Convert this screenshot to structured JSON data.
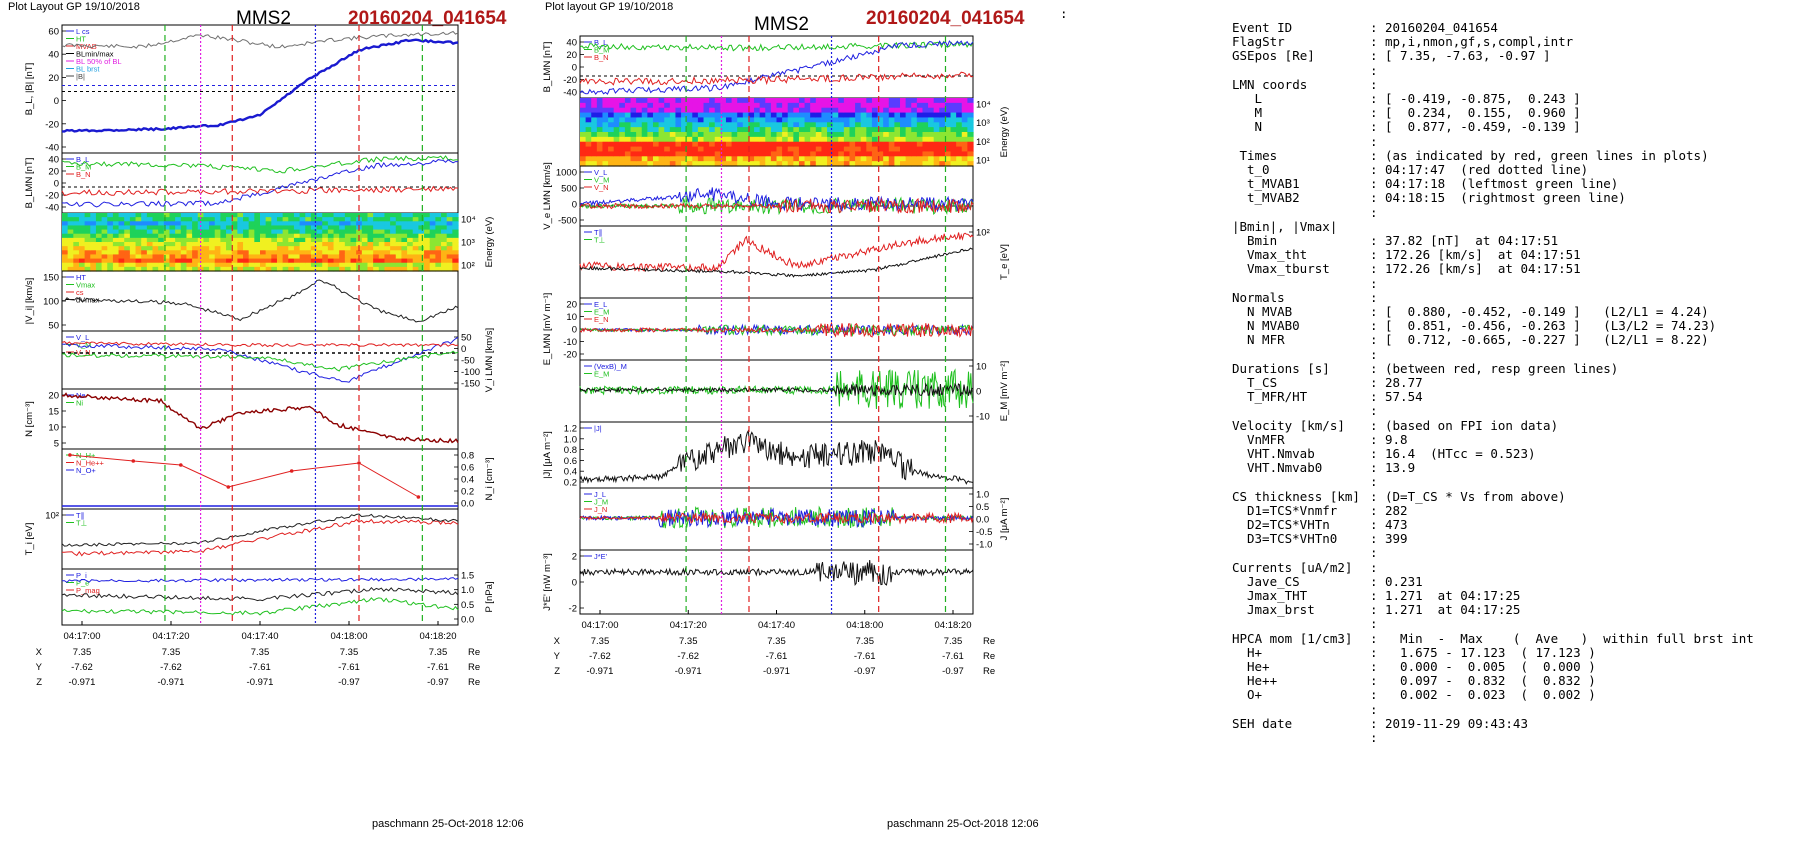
{
  "left_plot": {
    "header": "Plot Layout GP 19/10/2018",
    "spacecraft": "MMS2",
    "event": "20160204_041654",
    "footer": "paschmann 25-Oct-2018 12:06",
    "time_ticks": [
      "04:17:00",
      "04:17:20",
      "04:17:40",
      "04:18:00",
      "04:18:20"
    ],
    "orbit_rows": [
      {
        "label": "X",
        "values": [
          "7.35",
          "7.35",
          "7.35",
          "7.35",
          "7.35"
        ],
        "unit": "Re"
      },
      {
        "label": "Y",
        "values": [
          "-7.62",
          "-7.62",
          "-7.61",
          "-7.61",
          "-7.61"
        ],
        "unit": "Re"
      },
      {
        "label": "Z",
        "values": [
          "-0.971",
          "-0.971",
          "-0.971",
          "-0.97",
          "-0.97"
        ],
        "unit": "Re"
      }
    ],
    "panels": [
      {
        "ylabel": "B_L, |B| [nT]",
        "ticks": [
          "60",
          "40",
          "20",
          "0",
          "-20",
          "-40"
        ],
        "legend": [
          "L cs",
          "HT",
          "MVAB",
          "BLmin/max",
          "BL 50% of BL",
          "BL brst",
          "|B|"
        ]
      },
      {
        "ylabel": "B_LMN [nT]",
        "ticks": [
          "40",
          "20",
          "0",
          "-20",
          "-40"
        ],
        "legend": [
          "B_L",
          "B_M",
          "B_N"
        ]
      },
      {
        "ylabel": "Energy (eV)",
        "ticks": [
          "10⁴",
          "10³",
          "10²"
        ],
        "legend": []
      },
      {
        "ylabel": "|V_i| [km/s]",
        "ticks": [
          "150",
          "100",
          "50"
        ],
        "legend": [
          "HT",
          "Vmax",
          "cs",
          "dVmax"
        ]
      },
      {
        "ylabel": "V_i LMN [km/s]",
        "ticks": [
          "50",
          "0",
          "-50",
          "-100",
          "-150"
        ],
        "legend": [
          "V_L",
          "V_M",
          "V_N"
        ]
      },
      {
        "ylabel": "N [cm⁻³]",
        "ticks": [
          "20",
          "15",
          "10",
          "5"
        ],
        "legend": [
          "Ne",
          "Ni"
        ]
      },
      {
        "ylabel": "N_i [cm⁻³]",
        "ticks": [
          "0.8",
          "0.6",
          "0.4",
          "0.2",
          "0.0"
        ],
        "legend": [
          "N_H+",
          "N_He++",
          "N_O+"
        ]
      },
      {
        "ylabel": "T_i [eV]",
        "ticks": [
          "10²"
        ],
        "legend": [
          "T∥",
          "T⊥"
        ]
      },
      {
        "ylabel": "P [nPa]",
        "ticks": [
          "1.5",
          "1.0",
          "0.5",
          "0.0"
        ],
        "legend": [
          "P_i",
          "P_e",
          "P_mag"
        ]
      }
    ]
  },
  "right_plot": {
    "header": "Plot layout GP 19/10/2018",
    "spacecraft": "MMS2",
    "event": "20160204_041654",
    "footer": "paschmann 25-Oct-2018 12:06",
    "time_ticks": [
      "04:17:00",
      "04:17:20",
      "04:17:40",
      "04:18:00",
      "04:18:20"
    ],
    "orbit_rows": [
      {
        "label": "X",
        "values": [
          "7.35",
          "7.35",
          "7.35",
          "7.35",
          "7.35"
        ],
        "unit": "Re"
      },
      {
        "label": "Y",
        "values": [
          "-7.62",
          "-7.62",
          "-7.61",
          "-7.61",
          "-7.61"
        ],
        "unit": "Re"
      },
      {
        "label": "Z",
        "values": [
          "-0.971",
          "-0.971",
          "-0.971",
          "-0.97",
          "-0.97"
        ],
        "unit": "Re"
      }
    ],
    "panels": [
      {
        "ylabel": "B_LMN [nT]",
        "ticks": [
          "40",
          "20",
          "0",
          "-20",
          "-40"
        ],
        "legend": [
          "B_L",
          "B_M",
          "B_N"
        ]
      },
      {
        "ylabel": "Energy (eV)",
        "ticks": [
          "10⁴",
          "10³",
          "10²",
          "10¹"
        ],
        "legend": []
      },
      {
        "ylabel": "V_e LMN [km/s]",
        "ticks": [
          "1000",
          "500",
          "0",
          "-500"
        ],
        "legend": [
          "V_L",
          "V_M",
          "V_N"
        ]
      },
      {
        "ylabel": "T_e [eV]",
        "ticks": [
          "10²"
        ],
        "legend": [
          "T∥",
          "T⊥"
        ]
      },
      {
        "ylabel": "E_LMN [mV m⁻¹]",
        "ticks": [
          "20",
          "10",
          "0",
          "-10",
          "-20"
        ],
        "legend": [
          "E_L",
          "E_M",
          "E_N"
        ]
      },
      {
        "ylabel": "E_M [mV m⁻²]",
        "ticks": [
          "10",
          "0",
          "-10"
        ],
        "legend": [
          "(VexB)_M",
          "E_M"
        ]
      },
      {
        "ylabel": "|J| [μA m⁻²]",
        "ticks": [
          "1.2",
          "1.0",
          "0.8",
          "0.6",
          "0.4",
          "0.2"
        ],
        "legend": [
          "|J|"
        ]
      },
      {
        "ylabel": "J [μA m⁻²]",
        "ticks": [
          "1.0",
          "0.5",
          "0.0",
          "-0.5",
          "-1.0"
        ],
        "legend": [
          "J_L",
          "J_M",
          "J_N"
        ]
      },
      {
        "ylabel": "J*E' [nW m⁻³]",
        "ticks": [
          "2",
          "0",
          "-2"
        ],
        "legend": [
          "J*E'"
        ]
      }
    ]
  },
  "info_rows": [
    {
      "k": "Event ID",
      "v": "20160204_041654",
      "indent": 0
    },
    {
      "k": "FlagStr",
      "v": "mp,i,nmon,gf,s,compl,intr",
      "indent": 0
    },
    {
      "k": "GSEpos [Re]",
      "v": "[ 7.35, -7.63, -0.97 ]",
      "indent": 0
    },
    {
      "k": "",
      "v": "",
      "indent": 0
    },
    {
      "k": "LMN coords",
      "v": "",
      "indent": 0
    },
    {
      "k": "L",
      "v": "[ -0.419, -0.875,  0.243 ]",
      "indent": 3
    },
    {
      "k": "M",
      "v": "[  0.234,  0.155,  0.960 ]",
      "indent": 3
    },
    {
      "k": "N",
      "v": "[  0.877, -0.459, -0.139 ]",
      "indent": 3
    },
    {
      "k": "",
      "v": "",
      "indent": 0
    },
    {
      "k": " Times",
      "v": "(as indicated by red, green lines in plots)",
      "indent": 0
    },
    {
      "k": "t_0",
      "v": "04:17:47  (red dotted line)",
      "indent": 2
    },
    {
      "k": "t_MVAB1",
      "v": "04:17:18  (leftmost green line)",
      "indent": 2
    },
    {
      "k": "t_MVAB2",
      "v": "04:18:15  (rightmost green line)",
      "indent": 2
    },
    {
      "k": "",
      "v": "",
      "indent": 0
    },
    {
      "k": "|Bmin|, |Vmax|",
      "v": "",
      "indent": 0,
      "noColon": true
    },
    {
      "k": "Bmin",
      "v": "37.82 [nT]  at 04:17:51",
      "indent": 2
    },
    {
      "k": "Vmax_tht",
      "v": "172.26 [km/s]  at 04:17:51",
      "indent": 2
    },
    {
      "k": "Vmax_tburst",
      "v": "172.26 [km/s]  at 04:17:51",
      "indent": 2
    },
    {
      "k": "",
      "v": "",
      "indent": 0
    },
    {
      "k": "Normals",
      "v": "",
      "indent": 0
    },
    {
      "k": "N MVAB",
      "v": "[  0.880, -0.452, -0.149 ]   (L2/L1 = 4.24)",
      "indent": 2
    },
    {
      "k": "N MVAB0",
      "v": "[  0.851, -0.456, -0.263 ]   (L3/L2 = 74.23)",
      "indent": 2
    },
    {
      "k": "N MFR",
      "v": "[  0.712, -0.665, -0.227 ]   (L2/L1 = 8.22)",
      "indent": 2
    },
    {
      "k": "",
      "v": "",
      "indent": 0
    },
    {
      "k": "Durations [s]",
      "v": "(between red, resp green lines)",
      "indent": 0
    },
    {
      "k": "T_CS",
      "v": "28.77",
      "indent": 2
    },
    {
      "k": "T_MFR/HT",
      "v": "57.54",
      "indent": 2
    },
    {
      "k": "",
      "v": "",
      "indent": 0
    },
    {
      "k": "Velocity [km/s]",
      "v": "(based on FPI ion data)",
      "indent": 0
    },
    {
      "k": "VnMFR",
      "v": "9.8",
      "indent": 2
    },
    {
      "k": "VHT.Nmvab",
      "v": "16.4  (HTcc = 0.523)",
      "indent": 2
    },
    {
      "k": "VHT.Nmvab0",
      "v": "13.9",
      "indent": 2
    },
    {
      "k": "",
      "v": "",
      "indent": 0
    },
    {
      "k": "CS thickness [km]",
      "v": "(D=T_CS * Vs from above)",
      "indent": 0
    },
    {
      "k": "D1=TCS*Vnmfr",
      "v": "282",
      "indent": 2
    },
    {
      "k": "D2=TCS*VHTn",
      "v": "473",
      "indent": 2
    },
    {
      "k": "D3=TCS*VHTn0",
      "v": "399",
      "indent": 2
    },
    {
      "k": "",
      "v": "",
      "indent": 0
    },
    {
      "k": "Currents [uA/m2]",
      "v": "",
      "indent": 0
    },
    {
      "k": "Jave_CS",
      "v": "0.231",
      "indent": 2
    },
    {
      "k": "Jmax_THT",
      "v": "1.271  at 04:17:25",
      "indent": 2
    },
    {
      "k": "Jmax_brst",
      "v": "1.271  at 04:17:25",
      "indent": 2
    },
    {
      "k": "",
      "v": "",
      "indent": 0
    },
    {
      "k": "HPCA mom [1/cm3]",
      "v": "  Min  -  Max    (  Ave   )  within full brst int",
      "indent": 0
    },
    {
      "k": "H+",
      "v": "  1.675 - 17.123  ( 17.123 )",
      "indent": 2
    },
    {
      "k": "He+",
      "v": "  0.000 -  0.005  (  0.000 )",
      "indent": 2
    },
    {
      "k": "He++",
      "v": "  0.097 -  0.832  (  0.832 )",
      "indent": 2
    },
    {
      "k": "O+",
      "v": "  0.002 -  0.023  (  0.002 )",
      "indent": 2
    },
    {
      "k": "",
      "v": "",
      "indent": 0
    },
    {
      "k": "SEH date",
      "v": "2019-11-29 09:43:43",
      "indent": 0
    },
    {
      "k": "",
      "v": "",
      "indent": 0
    }
  ],
  "chart_data": [
    {
      "type": "line",
      "title": "MMS2 20160204_041654 (Plot Layout GP 19/10/2018)",
      "x": [
        "04:17:00",
        "04:17:20",
        "04:17:40",
        "04:18:00",
        "04:18:20"
      ],
      "event_lines": {
        "t_0": "04:17:47",
        "t_MVAB1": "04:17:18",
        "t_MVAB2": "04:18:15"
      },
      "series": [
        {
          "name": "B_L [nT]",
          "values": [
            -33,
            -32,
            -22,
            25,
            47
          ]
        },
        {
          "name": "|B| [nT]",
          "values": [
            45,
            48,
            40,
            43,
            52
          ]
        },
        {
          "name": "|V_i| [km/s]",
          "values": [
            85,
            90,
            65,
            110,
            70
          ]
        },
        {
          "name": "N [cm-3]",
          "values": [
            20,
            10,
            14,
            6,
            3
          ]
        },
        {
          "name": "N He++ [cm-3]",
          "values": [
            0.72,
            0.58,
            0.3,
            0.62,
            0.09
          ]
        },
        {
          "name": "P [nPa]",
          "values": [
            1.0,
            1.2,
            0.9,
            1.1,
            1.3
          ]
        }
      ]
    },
    {
      "type": "line",
      "title": "MMS2 20160204_041654 (Plot layout GP 19/10/2018)",
      "x": [
        "04:17:00",
        "04:17:20",
        "04:17:40",
        "04:18:00",
        "04:18:20"
      ],
      "series": [
        {
          "name": "B_L [nT]",
          "values": [
            -25,
            -15,
            10,
            35,
            45
          ]
        },
        {
          "name": "V_e L [km/s]",
          "values": [
            0,
            300,
            50,
            100,
            200
          ]
        },
        {
          "name": "|J| [uA m-2]",
          "values": [
            0.1,
            0.9,
            0.6,
            0.5,
            0.05
          ]
        },
        {
          "name": "J*E' [nW m-3]",
          "values": [
            0,
            0.3,
            -0.2,
            1.5,
            0
          ]
        }
      ]
    }
  ]
}
